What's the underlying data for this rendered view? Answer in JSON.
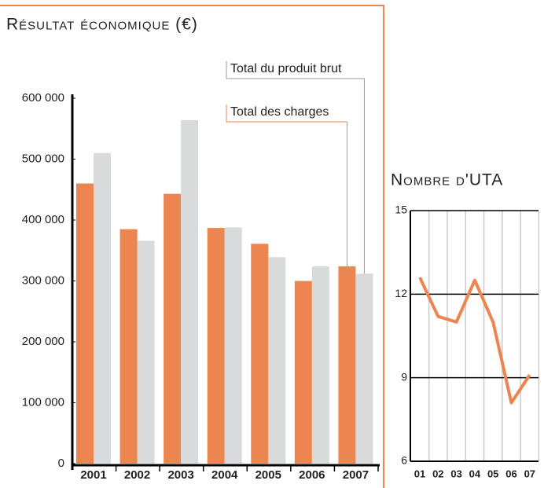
{
  "chart_data": [
    {
      "type": "bar",
      "title": "Résultat économique (€)",
      "categories": [
        "2001",
        "2002",
        "2003",
        "2004",
        "2005",
        "2006",
        "2007"
      ],
      "series": [
        {
          "name": "Total des charges",
          "color": "#ec8550",
          "values": [
            460000,
            385000,
            443000,
            387000,
            361000,
            300000,
            324000
          ]
        },
        {
          "name": "Total du produit brut",
          "color": "#d9dadc",
          "values": [
            510000,
            366000,
            564000,
            388000,
            339000,
            324000,
            312000
          ]
        }
      ],
      "ylim": [
        0,
        600000
      ],
      "yticks": [
        0,
        {
          "value": 100000,
          "label": "100 000"
        },
        {
          "value": 200000,
          "label": "200 000"
        },
        {
          "value": 300000,
          "label": "300 000"
        },
        {
          "value": 400000,
          "label": "400 000"
        },
        {
          "value": 500000,
          "label": "500 000"
        },
        {
          "value": 600000,
          "label": "600 000"
        }
      ]
    },
    {
      "type": "line",
      "title": "Nombre d'UTA",
      "categories": [
        "01",
        "02",
        "03",
        "04",
        "05",
        "06",
        "07"
      ],
      "values": [
        12.6,
        11.2,
        11.0,
        12.5,
        11.0,
        8.1,
        9.1
      ],
      "color": "#ec8550",
      "ylim": [
        6,
        15
      ],
      "yticks": [
        6,
        9,
        12,
        15
      ],
      "grid": true
    }
  ]
}
